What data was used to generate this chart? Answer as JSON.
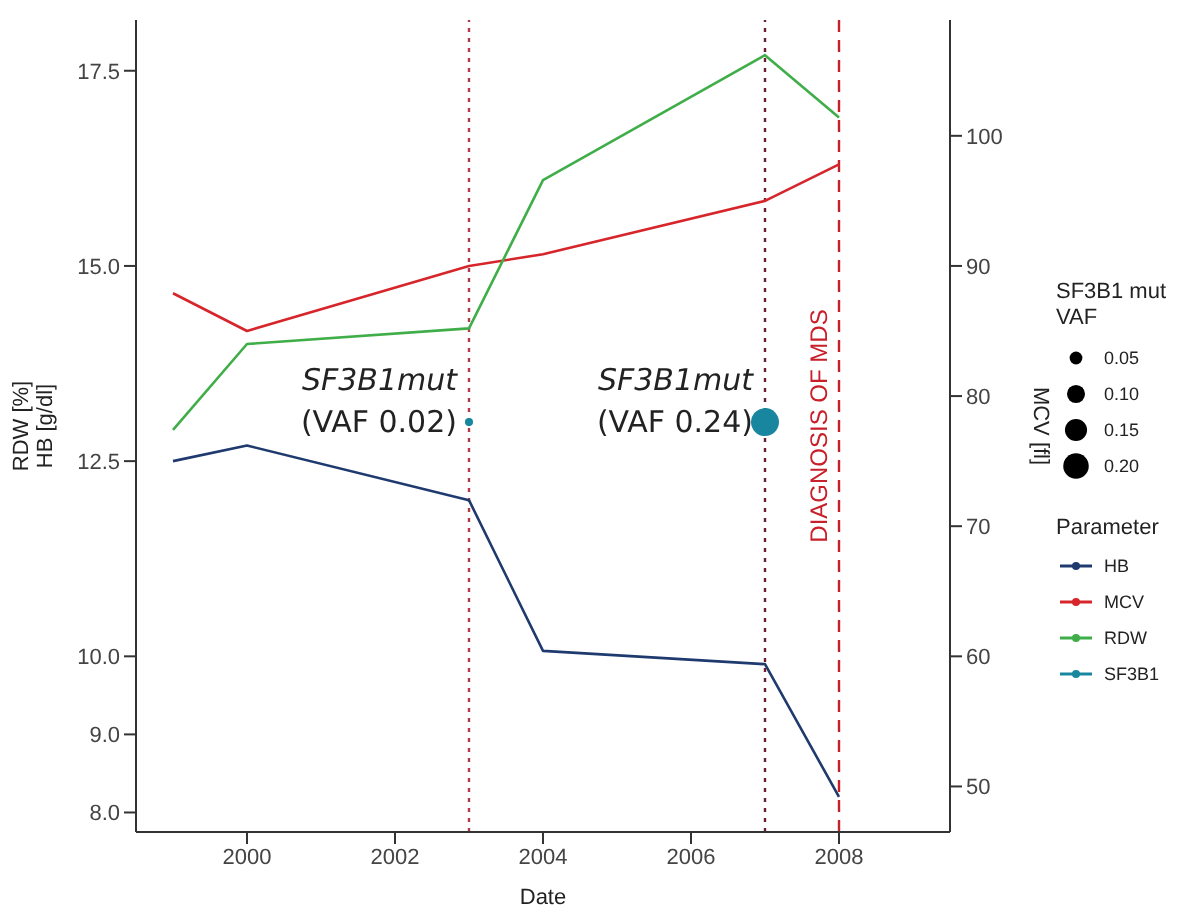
{
  "chart_data": {
    "type": "line",
    "xlabel": "Date",
    "ylabel": "RDW [%]\nHB [g/dl]",
    "y2label": "MCV [fl]",
    "legend_title": "Parameter",
    "xlim": [
      1998.5,
      2009.5
    ],
    "xticks": [
      2000,
      2002,
      2004,
      2006,
      2008
    ],
    "ylim": [
      7.75,
      18.15
    ],
    "yticks": [
      {
        "value": 8,
        "label": "8.0"
      },
      {
        "value": 9,
        "label": "9.0"
      },
      {
        "value": 10,
        "label": "10.0"
      },
      {
        "value": 12.5,
        "label": "12.5"
      },
      {
        "value": 15,
        "label": "15.0"
      },
      {
        "value": 17.5,
        "label": "17.5"
      }
    ],
    "y2lim": [
      46.5,
      108.9
    ],
    "y2ticks": [
      50,
      60,
      70,
      80,
      90,
      100
    ],
    "series": [
      {
        "name": "HB",
        "color": "#1f3a6e",
        "x": [
          1999,
          2000,
          2003,
          2004,
          2007,
          2008
        ],
        "values": [
          12.5,
          12.7,
          12.0,
          10.07,
          9.9,
          8.2
        ]
      },
      {
        "name": "MCV",
        "color": "#d7262b",
        "axis": "y2",
        "x": [
          1999,
          2000,
          2003,
          2004,
          2007,
          2008
        ],
        "values": [
          87.9,
          85,
          90,
          90.9,
          95,
          97.8
        ]
      },
      {
        "name": "RDW",
        "color": "#3fae49",
        "x": [
          1999,
          2000,
          2003,
          2004,
          2007,
          2008
        ],
        "values": [
          12.9,
          14.0,
          14.2,
          16.1,
          17.7,
          16.9
        ]
      },
      {
        "name": "SF3B1",
        "color": "#17869e",
        "type": "bubble",
        "x": [
          2003,
          2007
        ],
        "values": [
          13,
          13
        ],
        "sizes": [
          0.02,
          0.24
        ]
      }
    ],
    "size_legend": [
      0.05,
      {
        "value": 0.1,
        "label": "0.10"
      },
      0.15,
      {
        "value": 0.2,
        "label": "0.20"
      }
    ],
    "ref_lines": [
      {
        "axis": "x",
        "value": 2003,
        "color": "#b03a48",
        "line_style": "dotted"
      },
      {
        "axis": "x",
        "value": 2007,
        "color": "#6b2030",
        "line_style": "dotted"
      },
      {
        "axis": "x",
        "value": 2008,
        "color": "#c8202a",
        "line_style": "dashed",
        "label": "DIAGNOSIS OF MDS"
      }
    ],
    "annotations": [
      {
        "text": "SF3B1mut\n(VAF 0.02)",
        "x": 2003,
        "y": 13
      },
      {
        "text": "SF3B1mut\n(VAF 0.24)",
        "x": 2007,
        "y": 13
      },
      "SF3B1 mut\nVAF"
    ],
    "legend": "right",
    "grid": false,
    "line_style": "solid"
  }
}
